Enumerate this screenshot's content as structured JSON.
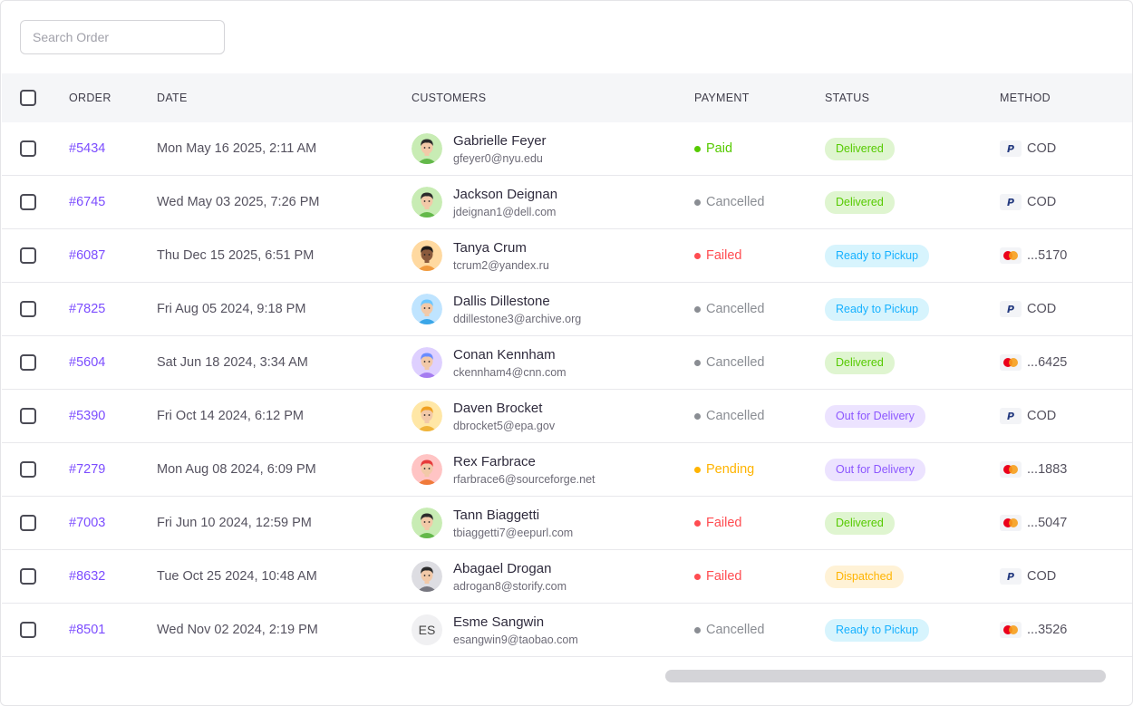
{
  "search": {
    "placeholder": "Search Order"
  },
  "columns": {
    "order": "ORDER",
    "date": "DATE",
    "customers": "CUSTOMERS",
    "payment": "PAYMENT",
    "status": "STATUS",
    "method": "METHOD"
  },
  "status_colors": {
    "Delivered": {
      "bg": "#dff5d0",
      "fg": "#56ca00"
    },
    "Ready to Pickup": {
      "bg": "#d7f4fd",
      "fg": "#16b1ff"
    },
    "Out for Delivery": {
      "bg": "#ece3ff",
      "fg": "#8c57ff"
    },
    "Dispatched": {
      "bg": "#fff2d6",
      "fg": "#ffb400"
    }
  },
  "payment_colors": {
    "Paid": "#56ca00",
    "Cancelled": "#8a8d93",
    "Failed": "#ff4c51",
    "Pending": "#ffb400"
  },
  "rows": [
    {
      "order": "#5434",
      "date": "Mon May 16 2025, 2:11 AM",
      "name": "Gabrielle Feyer",
      "email": "gfeyer0@nyu.edu",
      "avatar": "avatar-green-icon",
      "payment": "Paid",
      "status": "Delivered",
      "method_icon": "paypal-icon",
      "method": "COD"
    },
    {
      "order": "#6745",
      "date": "Wed May 03 2025, 7:26 PM",
      "name": "Jackson Deignan",
      "email": "jdeignan1@dell.com",
      "avatar": "avatar-green-icon",
      "payment": "Cancelled",
      "status": "Delivered",
      "method_icon": "paypal-icon",
      "method": "COD"
    },
    {
      "order": "#6087",
      "date": "Thu Dec 15 2025, 6:51 PM",
      "name": "Tanya Crum",
      "email": "tcrum2@yandex.ru",
      "avatar": "avatar-orange-icon",
      "payment": "Failed",
      "status": "Ready to Pickup",
      "method_icon": "mastercard-icon",
      "method": "...5170"
    },
    {
      "order": "#7825",
      "date": "Fri Aug 05 2024, 9:18 PM",
      "name": "Dallis Dillestone",
      "email": "ddillestone3@archive.org",
      "avatar": "avatar-blue-icon",
      "payment": "Cancelled",
      "status": "Ready to Pickup",
      "method_icon": "paypal-icon",
      "method": "COD"
    },
    {
      "order": "#5604",
      "date": "Sat Jun 18 2024, 3:34 AM",
      "name": "Conan Kennham",
      "email": "ckennham4@cnn.com",
      "avatar": "avatar-purple-icon",
      "payment": "Cancelled",
      "status": "Delivered",
      "method_icon": "mastercard-icon",
      "method": "...6425"
    },
    {
      "order": "#5390",
      "date": "Fri Oct 14 2024, 6:12 PM",
      "name": "Daven Brocket",
      "email": "dbrocket5@epa.gov",
      "avatar": "avatar-yellow-icon",
      "payment": "Cancelled",
      "status": "Out for Delivery",
      "method_icon": "paypal-icon",
      "method": "COD"
    },
    {
      "order": "#7279",
      "date": "Mon Aug 08 2024, 6:09 PM",
      "name": "Rex Farbrace",
      "email": "rfarbrace6@sourceforge.net",
      "avatar": "avatar-red-icon",
      "payment": "Pending",
      "status": "Out for Delivery",
      "method_icon": "mastercard-icon",
      "method": "...1883"
    },
    {
      "order": "#7003",
      "date": "Fri Jun 10 2024, 12:59 PM",
      "name": "Tann Biaggetti",
      "email": "tbiaggetti7@eepurl.com",
      "avatar": "avatar-green-icon",
      "payment": "Failed",
      "status": "Delivered",
      "method_icon": "mastercard-icon",
      "method": "...5047"
    },
    {
      "order": "#8632",
      "date": "Tue Oct 25 2024, 10:48 AM",
      "name": "Abagael Drogan",
      "email": "adrogan8@storify.com",
      "avatar": "avatar-gray-icon",
      "payment": "Failed",
      "status": "Dispatched",
      "method_icon": "paypal-icon",
      "method": "COD"
    },
    {
      "order": "#8501",
      "date": "Wed Nov 02 2024, 2:19 PM",
      "name": "Esme Sangwin",
      "email": "esangwin9@taobao.com",
      "avatar_initials": "ES",
      "payment": "Cancelled",
      "status": "Ready to Pickup",
      "method_icon": "mastercard-icon",
      "method": "...3526"
    }
  ]
}
